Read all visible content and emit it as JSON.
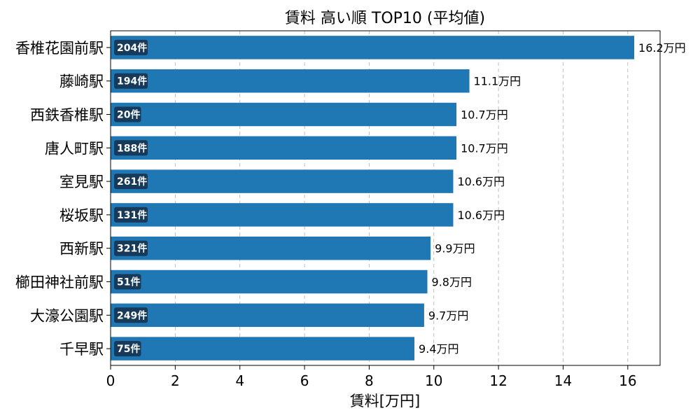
{
  "chart_data": {
    "type": "bar",
    "orientation": "horizontal",
    "title": "賃料 高い順 TOP10 (平均値)",
    "xlabel": "賃料[万円]",
    "ylabel": "",
    "xlim": [
      0,
      17
    ],
    "xticks": [
      0,
      2,
      4,
      6,
      8,
      10,
      12,
      14,
      16
    ],
    "grid": "x-dashed",
    "value_suffix": "万円",
    "count_suffix": "件",
    "categories": [
      "香椎花園前駅",
      "藤崎駅",
      "西鉄香椎駅",
      "唐人町駅",
      "室見駅",
      "桜坂駅",
      "西新駅",
      "櫛田神社前駅",
      "大濠公園駅",
      "千早駅"
    ],
    "values": [
      16.2,
      11.1,
      10.7,
      10.7,
      10.6,
      10.6,
      9.9,
      9.8,
      9.7,
      9.4
    ],
    "counts": [
      204,
      194,
      20,
      188,
      261,
      131,
      321,
      51,
      249,
      75
    ],
    "bar_color": "#1f77b4",
    "badge_color": "#173a5a"
  }
}
